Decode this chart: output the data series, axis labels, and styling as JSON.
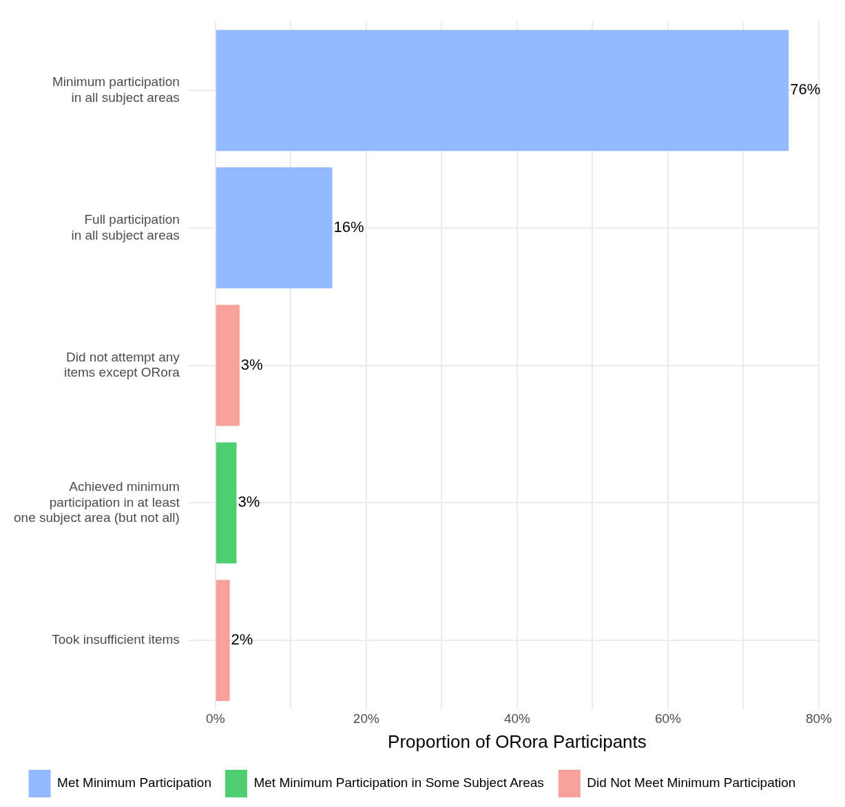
{
  "chart_data": {
    "type": "bar",
    "orientation": "horizontal",
    "stacked": true,
    "xlabel": "Proportion of ORora Participants",
    "categories": [
      "Minimum participation\nin all subject areas",
      "Full participation\nin all subject areas",
      "Did not attempt any\nitems except ORora",
      "Achieved minimum\nparticipation in at least\none subject area (but not all)",
      "Took insufficient items"
    ],
    "series": [
      {
        "name": "Met Minimum Participation",
        "color": "#93baff",
        "values": [
          76,
          15.5,
          null,
          null,
          null
        ],
        "value_labels": [
          "76%",
          "16%",
          null,
          null,
          null
        ]
      },
      {
        "name": "Met Minimum Participation in Some Subject Areas",
        "color": "#4dcf70",
        "values": [
          null,
          null,
          null,
          2.8,
          null
        ],
        "value_labels": [
          null,
          null,
          null,
          "3%",
          null
        ]
      },
      {
        "name": "Did Not Meet Minimum Participation",
        "color": "#f8a09a",
        "values": [
          null,
          null,
          3.2,
          null,
          1.9
        ],
        "value_labels": [
          null,
          null,
          "3%",
          null,
          "2%"
        ]
      }
    ],
    "xlim": [
      0,
      80
    ],
    "xticks": [
      {
        "value": 0,
        "label": "0%"
      },
      {
        "value": 10,
        "label": null
      },
      {
        "value": 20,
        "label": "20%"
      },
      {
        "value": 30,
        "label": null
      },
      {
        "value": 40,
        "label": "40%"
      },
      {
        "value": 50,
        "label": null
      },
      {
        "value": 60,
        "label": "60%"
      },
      {
        "value": 70,
        "label": null
      },
      {
        "value": 80,
        "label": "80%"
      }
    ],
    "grid": true,
    "legend": "bottom"
  }
}
